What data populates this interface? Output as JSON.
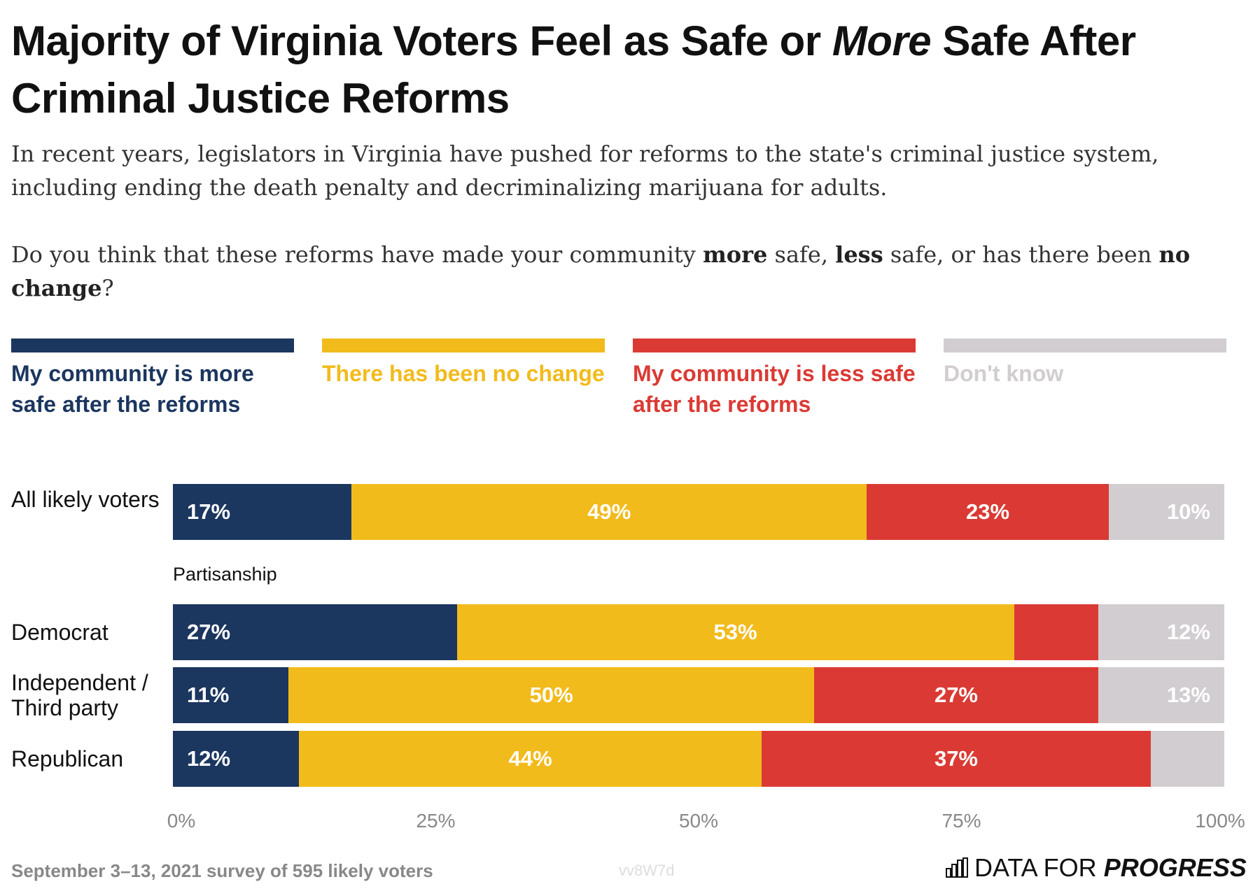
{
  "title_parts": [
    "Majority of Virginia Voters Feel as Safe or ",
    "More",
    " Safe After Criminal Justice Reforms"
  ],
  "subtitle": "In recent years, legislators in Virginia have pushed for reforms to the state's criminal justice system, including ending the death penalty and decriminalizing marijuana for adults.",
  "question_parts": [
    "Do you think that these reforms have made your community ",
    "more",
    " safe, ",
    "less",
    " safe, or has there been ",
    "no change",
    "?"
  ],
  "footer": "September 3–13, 2021 survey of 595 likely voters",
  "code": "vv8W7d",
  "logo": {
    "text_light": "DATA FOR ",
    "text_bold": "PROGRESS",
    "icon": "bar-chart-icon"
  },
  "chart_data": {
    "type": "bar",
    "orientation": "horizontal",
    "stacked": true,
    "xlim": [
      0,
      100
    ],
    "ticks": [
      "0%",
      "25%",
      "50%",
      "75%",
      "100%"
    ],
    "group_label": "Partisanship",
    "categories": [
      "All likely voters",
      "Democrat",
      "Independent / Third party",
      "Republican"
    ],
    "series": [
      {
        "name": "My community is more safe after the reforms",
        "color": "#1b365f",
        "values": [
          17,
          27,
          11,
          12
        ],
        "labels": [
          "17%",
          "27%",
          "11%",
          "12%"
        ]
      },
      {
        "name": "There has been no change",
        "color": "#f2bb1c",
        "values": [
          49,
          53,
          50,
          44
        ],
        "labels": [
          "49%",
          "53%",
          "50%",
          "44%"
        ]
      },
      {
        "name": "My community is less safe after the reforms",
        "color": "#db3a34",
        "values": [
          23,
          8,
          27,
          37
        ],
        "labels": [
          "23%",
          "",
          "27%",
          "37%"
        ]
      },
      {
        "name": "Don't know",
        "color": "#d1cdd1",
        "values": [
          10,
          12,
          13,
          7
        ],
        "labels": [
          "10%",
          "12%",
          "13%",
          ""
        ]
      }
    ],
    "legend": "top"
  }
}
